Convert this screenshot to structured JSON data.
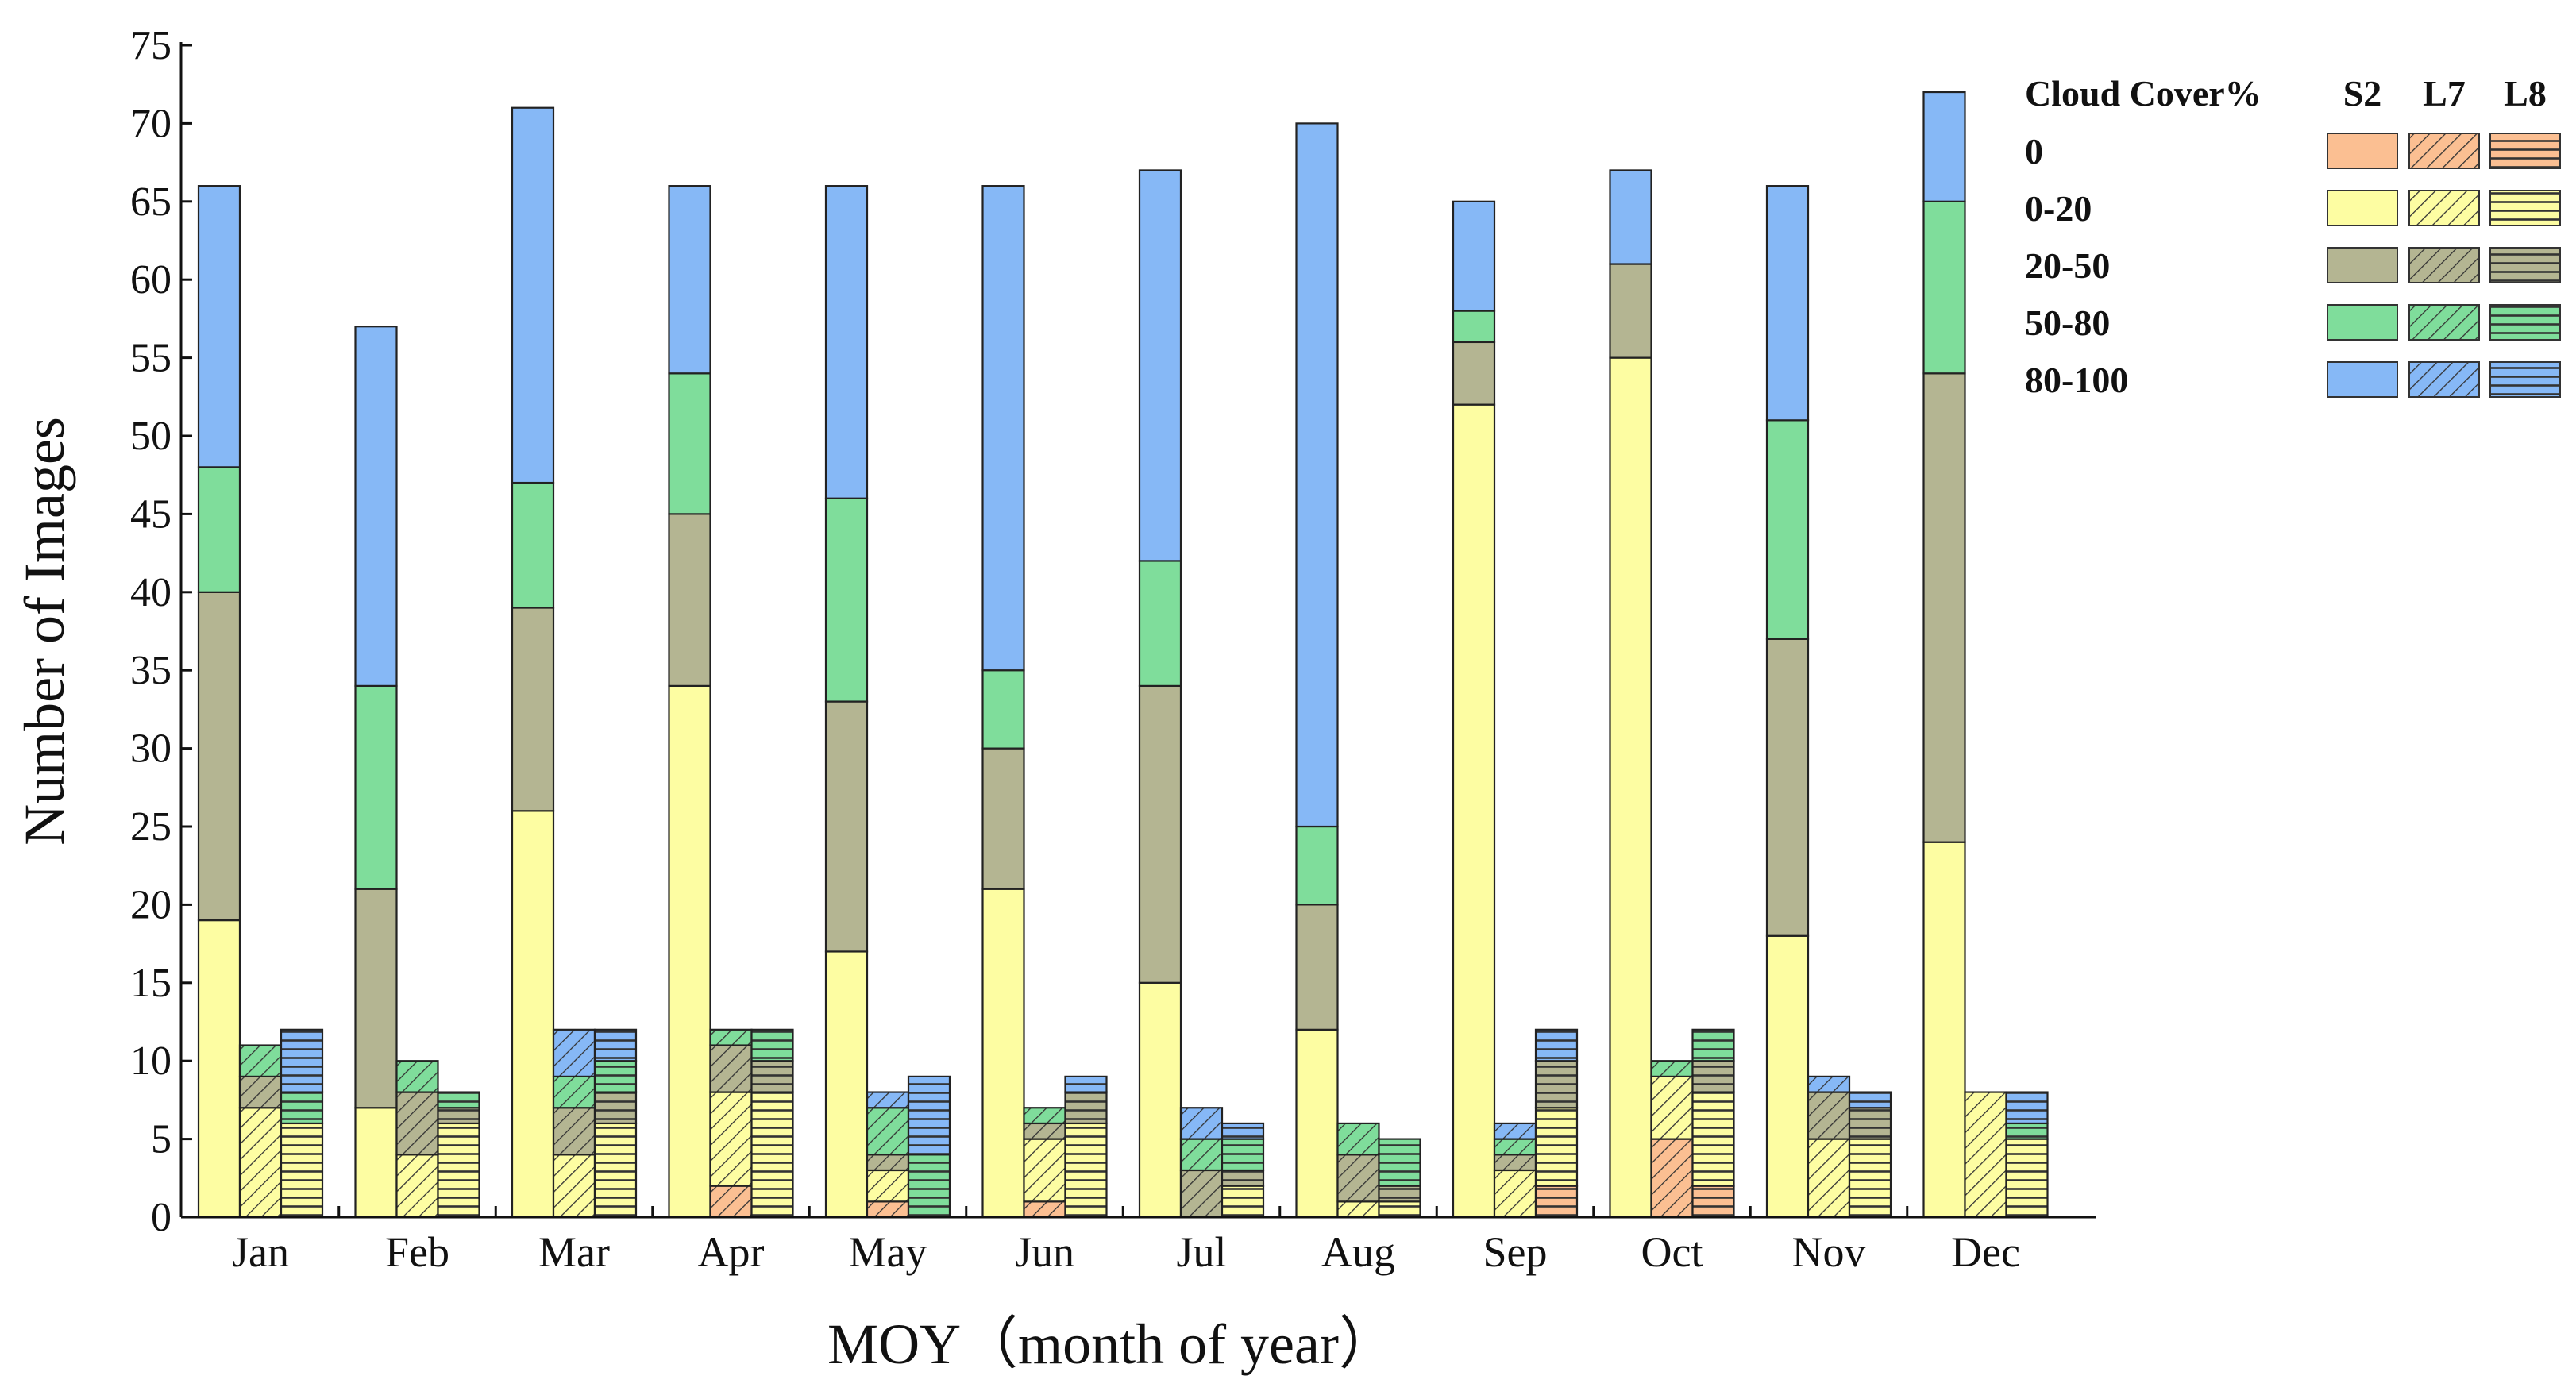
{
  "chart_data": {
    "type": "bar",
    "subtype": "grouped-stacked",
    "title": "",
    "xlabel": "MOY（month of year）",
    "ylabel": "Number of Images",
    "ylim": [
      0,
      75
    ],
    "yticks": [
      0,
      5,
      10,
      15,
      20,
      25,
      30,
      35,
      40,
      45,
      50,
      55,
      60,
      65,
      70,
      75
    ],
    "grid": false,
    "legend_position": "top-right",
    "categories": [
      "Jan",
      "Feb",
      "Mar",
      "Apr",
      "May",
      "Jun",
      "Jul",
      "Aug",
      "Sep",
      "Oct",
      "Nov",
      "Dec"
    ],
    "sensors": [
      "S2",
      "L7",
      "L8"
    ],
    "cloud_classes": [
      "0",
      "0-20",
      "20-50",
      "50-80",
      "80-100"
    ],
    "class_colors": {
      "0": "#fbbf92",
      "0-20": "#fdfda2",
      "20-50": "#b4b592",
      "50-80": "#7fdd9b",
      "80-100": "#86b8f6"
    },
    "sensor_patterns": {
      "S2": "solid",
      "L7": "diagonal-hatch",
      "L8": "horizontal-hatch"
    },
    "series": [
      {
        "sensor": "S2",
        "values": [
          {
            "month": "Jan",
            "0": 0,
            "0-20": 19,
            "20-50": 21,
            "50-80": 8,
            "80-100": 18
          },
          {
            "month": "Feb",
            "0": 0,
            "0-20": 7,
            "20-50": 14,
            "50-80": 13,
            "80-100": 23
          },
          {
            "month": "Mar",
            "0": 0,
            "0-20": 26,
            "20-50": 13,
            "50-80": 8,
            "80-100": 24
          },
          {
            "month": "Apr",
            "0": 0,
            "0-20": 34,
            "20-50": 11,
            "50-80": 9,
            "80-100": 12
          },
          {
            "month": "May",
            "0": 0,
            "0-20": 17,
            "20-50": 16,
            "50-80": 13,
            "80-100": 20
          },
          {
            "month": "Jun",
            "0": 0,
            "0-20": 21,
            "20-50": 9,
            "50-80": 5,
            "80-100": 31
          },
          {
            "month": "Jul",
            "0": 0,
            "0-20": 15,
            "20-50": 19,
            "50-80": 8,
            "80-100": 25
          },
          {
            "month": "Aug",
            "0": 0,
            "0-20": 12,
            "20-50": 8,
            "50-80": 5,
            "80-100": 45
          },
          {
            "month": "Sep",
            "0": 0,
            "0-20": 52,
            "20-50": 4,
            "50-80": 2,
            "80-100": 7
          },
          {
            "month": "Oct",
            "0": 0,
            "0-20": 55,
            "20-50": 6,
            "50-80": 0,
            "80-100": 6
          },
          {
            "month": "Nov",
            "0": 0,
            "0-20": 18,
            "20-50": 19,
            "50-80": 14,
            "80-100": 15
          },
          {
            "month": "Dec",
            "0": 0,
            "0-20": 24,
            "20-50": 30,
            "50-80": 11,
            "80-100": 7
          }
        ]
      },
      {
        "sensor": "L7",
        "values": [
          {
            "month": "Jan",
            "0": 0,
            "0-20": 7,
            "20-50": 2,
            "50-80": 2,
            "80-100": 0
          },
          {
            "month": "Feb",
            "0": 0,
            "0-20": 4,
            "20-50": 4,
            "50-80": 2,
            "80-100": 0
          },
          {
            "month": "Mar",
            "0": 0,
            "0-20": 4,
            "20-50": 3,
            "50-80": 2,
            "80-100": 3
          },
          {
            "month": "Apr",
            "0": 2,
            "0-20": 6,
            "20-50": 3,
            "50-80": 1,
            "80-100": 0
          },
          {
            "month": "May",
            "0": 1,
            "0-20": 2,
            "20-50": 1,
            "50-80": 3,
            "80-100": 1
          },
          {
            "month": "Jun",
            "0": 1,
            "0-20": 4,
            "20-50": 1,
            "50-80": 1,
            "80-100": 0
          },
          {
            "month": "Jul",
            "0": 0,
            "0-20": 0,
            "20-50": 3,
            "50-80": 2,
            "80-100": 2
          },
          {
            "month": "Aug",
            "0": 0,
            "0-20": 1,
            "20-50": 3,
            "50-80": 2,
            "80-100": 0
          },
          {
            "month": "Sep",
            "0": 0,
            "0-20": 3,
            "20-50": 1,
            "50-80": 1,
            "80-100": 1
          },
          {
            "month": "Oct",
            "0": 5,
            "0-20": 4,
            "20-50": 0,
            "50-80": 1,
            "80-100": 0
          },
          {
            "month": "Nov",
            "0": 0,
            "0-20": 5,
            "20-50": 3,
            "50-80": 0,
            "80-100": 1
          },
          {
            "month": "Dec",
            "0": 0,
            "0-20": 8,
            "20-50": 0,
            "50-80": 0,
            "80-100": 0
          }
        ]
      },
      {
        "sensor": "L8",
        "values": [
          {
            "month": "Jan",
            "0": 0,
            "0-20": 6,
            "20-50": 0,
            "50-80": 2,
            "80-100": 4
          },
          {
            "month": "Feb",
            "0": 0,
            "0-20": 6,
            "20-50": 1,
            "50-80": 1,
            "80-100": 0
          },
          {
            "month": "Mar",
            "0": 0,
            "0-20": 6,
            "20-50": 2,
            "50-80": 2,
            "80-100": 2
          },
          {
            "month": "Apr",
            "0": 0,
            "0-20": 8,
            "20-50": 2,
            "50-80": 2,
            "80-100": 0
          },
          {
            "month": "May",
            "0": 0,
            "0-20": 0,
            "20-50": 0,
            "50-80": 4,
            "80-100": 5
          },
          {
            "month": "Jun",
            "0": 0,
            "0-20": 6,
            "20-50": 2,
            "50-80": 0,
            "80-100": 1
          },
          {
            "month": "Jul",
            "0": 0,
            "0-20": 2,
            "20-50": 1,
            "50-80": 2,
            "80-100": 1
          },
          {
            "month": "Aug",
            "0": 0,
            "0-20": 1,
            "20-50": 1,
            "50-80": 3,
            "80-100": 0
          },
          {
            "month": "Sep",
            "0": 2,
            "0-20": 5,
            "20-50": 3,
            "50-80": 0,
            "80-100": 2
          },
          {
            "month": "Oct",
            "0": 2,
            "0-20": 6,
            "20-50": 2,
            "50-80": 2,
            "80-100": 0
          },
          {
            "month": "Nov",
            "0": 0,
            "0-20": 5,
            "20-50": 2,
            "50-80": 0,
            "80-100": 1
          },
          {
            "month": "Dec",
            "0": 0,
            "0-20": 5,
            "20-50": 0,
            "50-80": 1,
            "80-100": 2
          }
        ]
      }
    ],
    "legend": {
      "title": "Cloud Cover%",
      "sensor_headers": [
        "S2",
        "L7",
        "L8"
      ],
      "rows": [
        "0",
        "0-20",
        "20-50",
        "50-80",
        "80-100"
      ]
    }
  }
}
